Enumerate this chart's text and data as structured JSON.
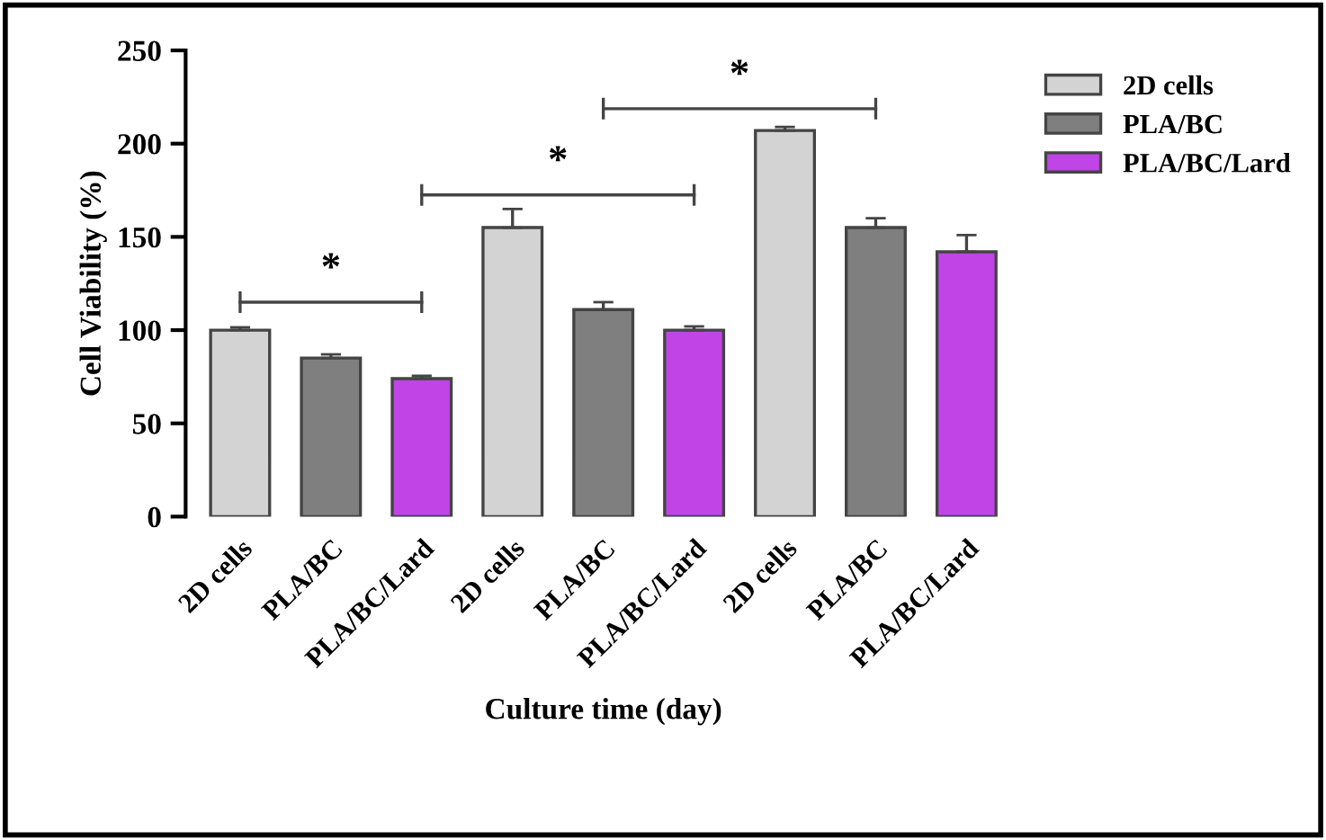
{
  "chart_data": {
    "type": "bar",
    "xlabel": "Culture time (day)",
    "ylabel": "Cell Viability (%)",
    "categories": [
      "2D cells",
      "PLA/BC",
      "PLA/BC/Lard",
      "2D cells",
      "PLA/BC",
      "PLA/BC/Lard",
      "2D cells",
      "PLA/BC",
      "PLA/BC/Lard"
    ],
    "series": [
      {
        "name": "2D cells",
        "color": "#d3d3d3",
        "values": [
          100,
          null,
          null,
          155,
          null,
          null,
          207,
          null,
          null
        ],
        "errors": [
          1.5,
          null,
          null,
          10,
          null,
          null,
          2,
          null,
          null
        ]
      },
      {
        "name": "PLA/BC",
        "color": "#7f7f7f",
        "values": [
          null,
          85,
          null,
          null,
          111,
          null,
          null,
          155,
          null
        ],
        "errors": [
          null,
          2,
          null,
          null,
          4,
          null,
          null,
          5,
          null
        ]
      },
      {
        "name": "PLA/BC/Lard",
        "color": "#c044e6",
        "values": [
          null,
          null,
          74,
          null,
          null,
          100,
          null,
          null,
          142
        ],
        "errors": [
          null,
          null,
          1.5,
          null,
          null,
          2,
          null,
          null,
          9
        ]
      }
    ],
    "ylim": [
      0,
      250
    ],
    "yticks": [
      0,
      50,
      100,
      150,
      200,
      250
    ],
    "grid": false,
    "legend": "top right",
    "annotations": [
      "*",
      "*",
      "*"
    ]
  }
}
